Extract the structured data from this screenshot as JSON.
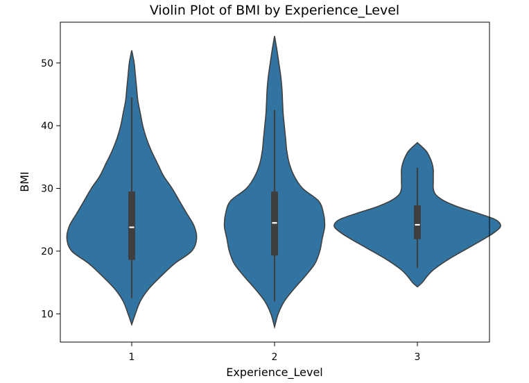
{
  "chart_data": {
    "type": "violin",
    "title": "Violin Plot of BMI by Experience_Level",
    "xlabel": "Experience_Level",
    "ylabel": "BMI",
    "categories": [
      "1",
      "2",
      "3"
    ],
    "ylim": [
      5.5,
      56.5
    ],
    "yticks": [
      10,
      20,
      30,
      40,
      50
    ],
    "grid": false,
    "legend": "none",
    "colors": {
      "fill": "#3274a1",
      "edge": "#3f3f3f",
      "box": "#3f3f3f",
      "median": "#ffffff"
    },
    "series": [
      {
        "category": "1",
        "min": 12.5,
        "q1": 18.6,
        "median": 23.8,
        "q3": 29.5,
        "max": 44.5,
        "violin_min": 8.3,
        "violin_max": 52.0,
        "density": [
          [
            8.3,
            0.0
          ],
          [
            10,
            0.03
          ],
          [
            12,
            0.07
          ],
          [
            14,
            0.14
          ],
          [
            16,
            0.24
          ],
          [
            18,
            0.35
          ],
          [
            20,
            0.49
          ],
          [
            22,
            0.53
          ],
          [
            24,
            0.51
          ],
          [
            26,
            0.45
          ],
          [
            28,
            0.39
          ],
          [
            30,
            0.33
          ],
          [
            32,
            0.26
          ],
          [
            34,
            0.21
          ],
          [
            36,
            0.16
          ],
          [
            38,
            0.12
          ],
          [
            40,
            0.09
          ],
          [
            42,
            0.07
          ],
          [
            44,
            0.05
          ],
          [
            46,
            0.04
          ],
          [
            48,
            0.03
          ],
          [
            50,
            0.02
          ],
          [
            52,
            0.0
          ]
        ]
      },
      {
        "category": "2",
        "min": 12.0,
        "q1": 19.3,
        "median": 24.5,
        "q3": 29.5,
        "max": 42.5,
        "violin_min": 7.9,
        "violin_max": 54.3,
        "density": [
          [
            7.9,
            0.0
          ],
          [
            10,
            0.03
          ],
          [
            12,
            0.08
          ],
          [
            14,
            0.16
          ],
          [
            16,
            0.25
          ],
          [
            18,
            0.33
          ],
          [
            20,
            0.37
          ],
          [
            22,
            0.39
          ],
          [
            24,
            0.41
          ],
          [
            26,
            0.4
          ],
          [
            28,
            0.36
          ],
          [
            30,
            0.23
          ],
          [
            32,
            0.16
          ],
          [
            34,
            0.12
          ],
          [
            36,
            0.1
          ],
          [
            38,
            0.09
          ],
          [
            40,
            0.08
          ],
          [
            42,
            0.07
          ],
          [
            44,
            0.065
          ],
          [
            46,
            0.06
          ],
          [
            48,
            0.05
          ],
          [
            50,
            0.035
          ],
          [
            52,
            0.02
          ],
          [
            54.3,
            0.0
          ]
        ]
      },
      {
        "category": "3",
        "min": 17.3,
        "q1": 21.9,
        "median": 24.2,
        "q3": 27.3,
        "max": 33.3,
        "violin_min": 14.3,
        "violin_max": 37.3,
        "density": [
          [
            14.3,
            0.0
          ],
          [
            15,
            0.04
          ],
          [
            16,
            0.08
          ],
          [
            17,
            0.13
          ],
          [
            18,
            0.2
          ],
          [
            19,
            0.28
          ],
          [
            20,
            0.37
          ],
          [
            21,
            0.46
          ],
          [
            22,
            0.55
          ],
          [
            23,
            0.63
          ],
          [
            24,
            0.68
          ],
          [
            25,
            0.64
          ],
          [
            26,
            0.5
          ],
          [
            27,
            0.34
          ],
          [
            28,
            0.22
          ],
          [
            29,
            0.15
          ],
          [
            30,
            0.13
          ],
          [
            31,
            0.13
          ],
          [
            32,
            0.13
          ],
          [
            33,
            0.13
          ],
          [
            34,
            0.12
          ],
          [
            35,
            0.1
          ],
          [
            36,
            0.07
          ],
          [
            37.3,
            0.0
          ]
        ]
      }
    ]
  }
}
